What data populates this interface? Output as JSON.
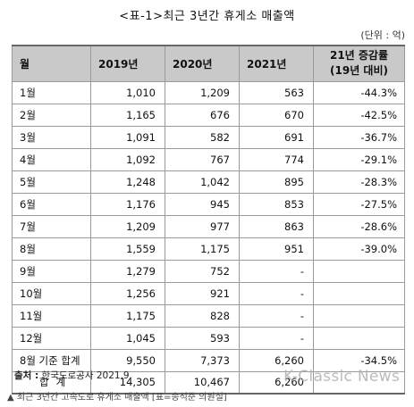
{
  "title": "<표-1>최근 3년간 휴게소 매출액",
  "unit": "(단위 : 억)",
  "table": {
    "headers": {
      "month": "월",
      "y2019": "2019년",
      "y2020": "2020년",
      "y2021": "2021년",
      "rate_line1": "21년 증감률",
      "rate_line2": "(19년 대비)"
    },
    "rows": [
      {
        "month": "1월",
        "y2019": "1,010",
        "y2020": "1,209",
        "y2021": "563",
        "rate": "-44.3%"
      },
      {
        "month": "2월",
        "y2019": "1,165",
        "y2020": "676",
        "y2021": "670",
        "rate": "-42.5%"
      },
      {
        "month": "3월",
        "y2019": "1,091",
        "y2020": "582",
        "y2021": "691",
        "rate": "-36.7%"
      },
      {
        "month": "4월",
        "y2019": "1,092",
        "y2020": "767",
        "y2021": "774",
        "rate": "-29.1%"
      },
      {
        "month": "5월",
        "y2019": "1,248",
        "y2020": "1,042",
        "y2021": "895",
        "rate": "-28.3%"
      },
      {
        "month": "6월",
        "y2019": "1,176",
        "y2020": "945",
        "y2021": "853",
        "rate": "-27.5%"
      },
      {
        "month": "7월",
        "y2019": "1,209",
        "y2020": "977",
        "y2021": "863",
        "rate": "-28.6%"
      },
      {
        "month": "8월",
        "y2019": "1,559",
        "y2020": "1,175",
        "y2021": "951",
        "rate": "-39.0%"
      },
      {
        "month": "9월",
        "y2019": "1,279",
        "y2020": "752",
        "y2021": "-",
        "rate": ""
      },
      {
        "month": "10월",
        "y2019": "1,256",
        "y2020": "921",
        "y2021": "-",
        "rate": ""
      },
      {
        "month": "11월",
        "y2019": "1,175",
        "y2020": "828",
        "y2021": "-",
        "rate": ""
      },
      {
        "month": "12월",
        "y2019": "1,045",
        "y2020": "593",
        "y2021": "-",
        "rate": ""
      },
      {
        "month": "8월 기준 합계",
        "y2019": "9,550",
        "y2020": "7,373",
        "y2021": "6,260",
        "rate": "-34.5%"
      }
    ],
    "total": {
      "label": "합계",
      "y2019": "14,305",
      "y2020": "10,467",
      "y2021": "6,260",
      "rate": ""
    }
  },
  "source": {
    "label": "출처 :",
    "text": "한국도로공사 2021.9."
  },
  "caption": "▲ 최근 3년간 고속도로 휴게소 매출액 [표=송석준 의원실]",
  "watermark": "K-Classic News"
}
